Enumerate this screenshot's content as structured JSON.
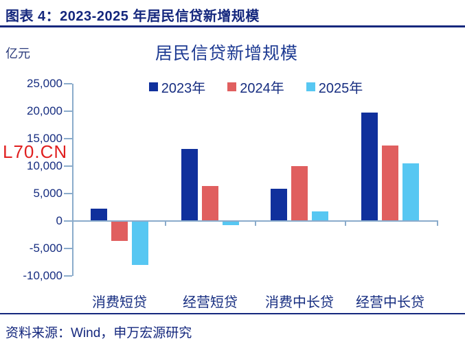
{
  "header": {
    "title": "图表 4：2023-2025 年居民信贷新增规模"
  },
  "watermark": {
    "text": "L70.CN",
    "color": "#e01f1f"
  },
  "footer": {
    "source": "资料来源：Wind，申万宏源研究"
  },
  "chart_data": {
    "type": "bar",
    "title": "居民信贷新增规模",
    "unit": "亿元",
    "categories": [
      "消费短贷",
      "经营短贷",
      "消费中长贷",
      "经营中长贷"
    ],
    "series": [
      {
        "name": "2023年",
        "color": "#10309c",
        "values": [
          2200,
          13100,
          5900,
          19700
        ]
      },
      {
        "name": "2024年",
        "color": "#e05f5f",
        "values": [
          -3600,
          6400,
          10000,
          13700
        ]
      },
      {
        "name": "2025年",
        "color": "#57c7f2",
        "values": [
          -8000,
          -800,
          1700,
          10500
        ]
      }
    ],
    "ylim": [
      -10000,
      25000
    ],
    "ytick_interval": 5000,
    "yticks": [
      25000,
      20000,
      15000,
      10000,
      5000,
      0,
      -5000,
      -10000
    ],
    "ytick_labels": [
      "25,000",
      "20,000",
      "15,000",
      "10,000",
      "5,000",
      "0",
      "-5,000",
      "-10,000"
    ],
    "legend_position": "top",
    "grid": false,
    "axis_color": "#8aabcb",
    "text_color": "#162d80"
  }
}
